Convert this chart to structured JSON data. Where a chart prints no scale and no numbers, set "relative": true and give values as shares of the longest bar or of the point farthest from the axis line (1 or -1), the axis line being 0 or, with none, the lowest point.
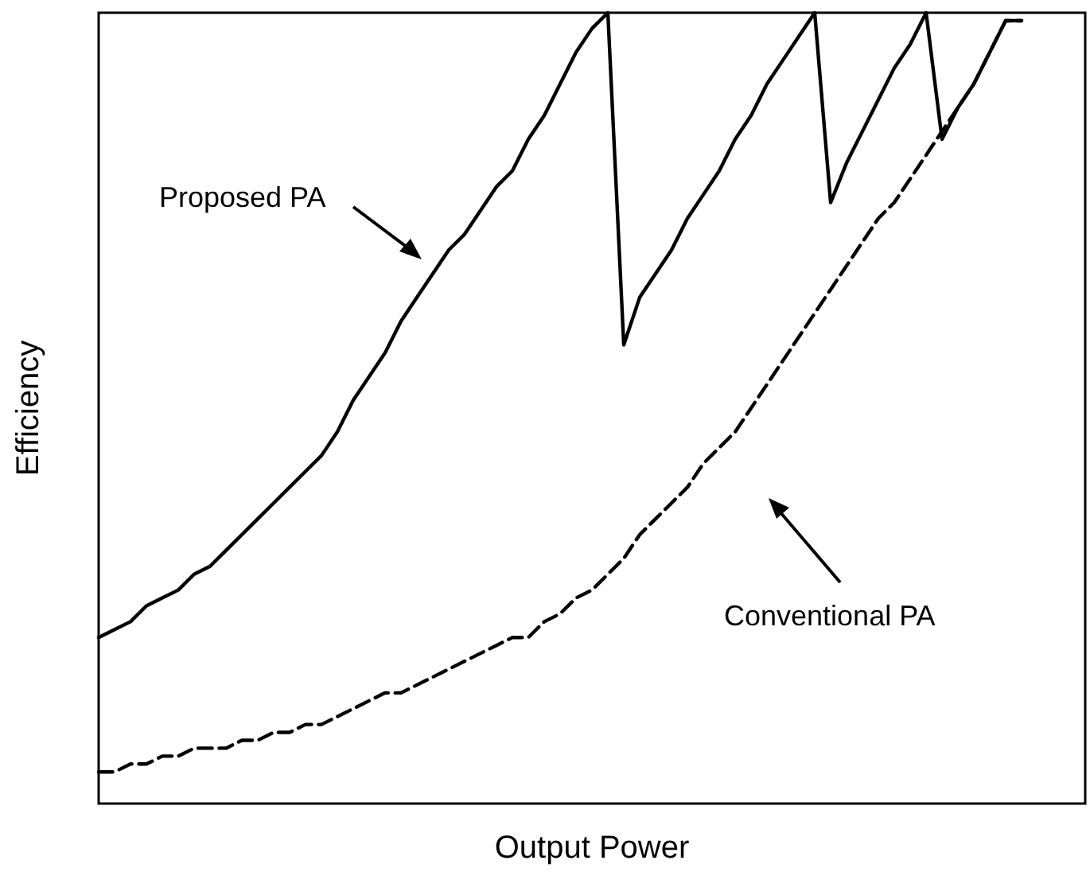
{
  "chart_data": {
    "type": "line",
    "relative": true,
    "xlabel": "Output Power",
    "ylabel": "Efficiency",
    "marker": "none",
    "grid": false,
    "annotations": [
      "Proposed PA",
      "Conventional PA"
    ],
    "categories": [
      null,
      null,
      null,
      null,
      null,
      null,
      null,
      null,
      null,
      null,
      null,
      null,
      null,
      null,
      null,
      null,
      null,
      null,
      null,
      null,
      null,
      null,
      null,
      null,
      null,
      null,
      null,
      null,
      null,
      null,
      null,
      null,
      null,
      null,
      null,
      null,
      null,
      null,
      null,
      null,
      null,
      null,
      null,
      null,
      null,
      null,
      null,
      null,
      null,
      null,
      null,
      null,
      null,
      null,
      null,
      null,
      null,
      null,
      null,
      null,
      null,
      null,
      null
    ],
    "series": [
      {
        "color": "#000000",
        "line_style": "solid",
        "values": [
          0.21,
          0.22,
          0.23,
          0.25,
          0.26,
          0.27,
          0.29,
          0.3,
          0.32,
          0.34,
          0.36,
          0.38,
          0.4,
          0.42,
          0.44,
          0.47,
          0.51,
          0.54,
          0.57,
          0.61,
          0.64,
          0.67,
          0.7,
          0.72,
          0.75,
          0.78,
          0.8,
          0.84,
          0.87,
          0.91,
          0.95,
          0.98,
          1,
          0.58,
          0.64,
          0.67,
          0.7,
          0.74,
          0.77,
          0.8,
          0.84,
          0.87,
          0.91,
          0.94,
          0.97,
          1,
          0.76,
          0.81,
          0.85,
          0.89,
          0.93,
          0.96,
          1,
          0.84,
          0.88,
          0.91,
          0.95,
          0.99,
          0.99,
          null,
          null,
          null,
          null
        ]
      },
      {
        "color": "#000000",
        "line_style": "dashed",
        "values": [
          0.04,
          0.04,
          0.05,
          0.05,
          0.06,
          0.06,
          0.07,
          0.07,
          0.07,
          0.08,
          0.08,
          0.09,
          0.09,
          0.1,
          0.1,
          0.11,
          0.12,
          0.13,
          0.14,
          0.14,
          0.15,
          0.16,
          0.17,
          0.18,
          0.19,
          0.2,
          0.21,
          0.21,
          0.23,
          0.24,
          0.26,
          0.27,
          0.29,
          0.31,
          0.34,
          0.36,
          0.38,
          0.4,
          0.43,
          0.45,
          0.47,
          0.5,
          0.53,
          0.56,
          0.59,
          0.62,
          0.65,
          0.68,
          0.71,
          0.74,
          0.76,
          0.79,
          0.82,
          0.85,
          0.88,
          0.91,
          0.95,
          0.99,
          0.99,
          null,
          null,
          null,
          null
        ]
      }
    ]
  }
}
